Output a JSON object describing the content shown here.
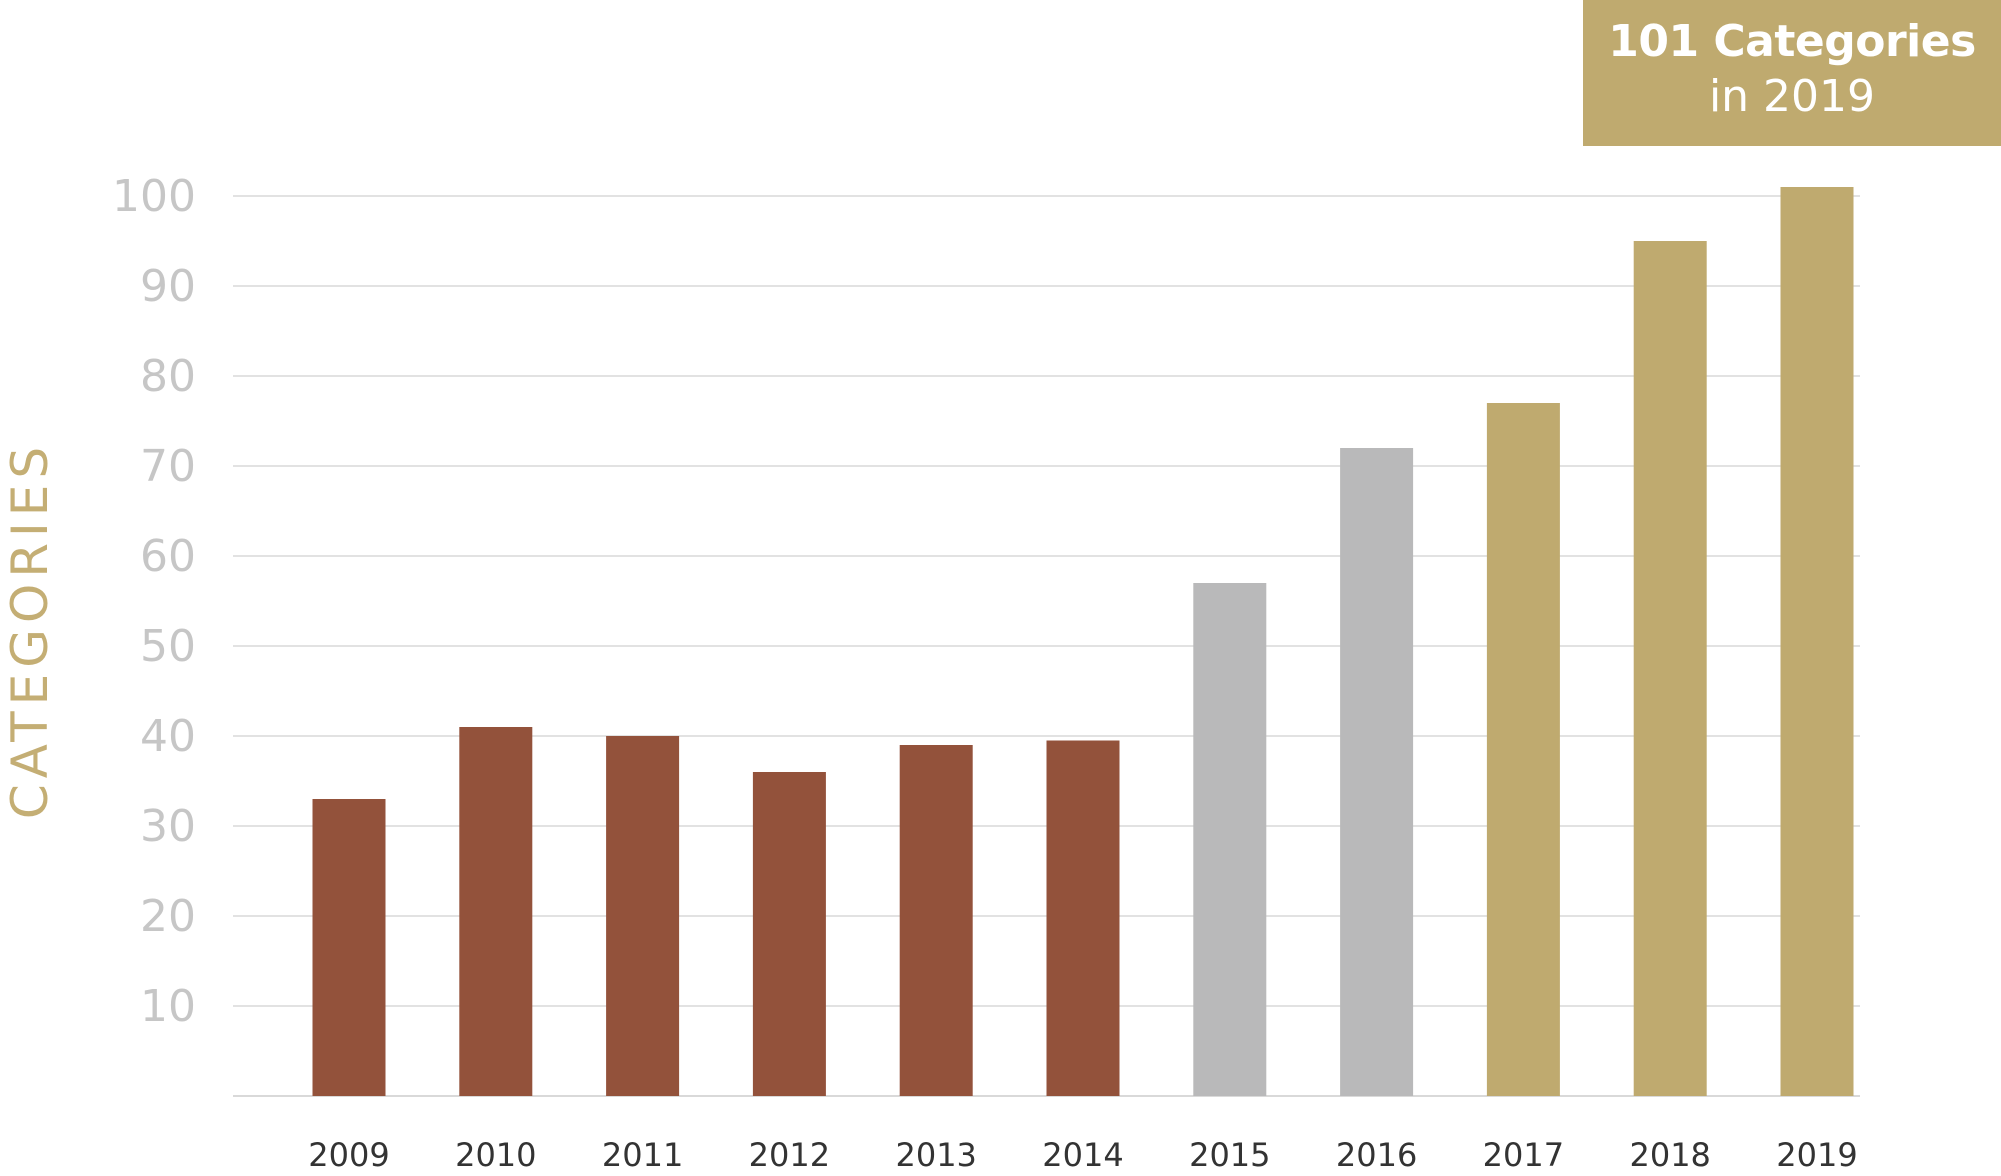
{
  "chart_data": {
    "type": "bar",
    "categories": [
      "2009",
      "2010",
      "2011",
      "2012",
      "2013",
      "2014",
      "2015",
      "2016",
      "2017",
      "2018",
      "2019"
    ],
    "values": [
      33,
      41,
      40,
      36,
      39,
      39.5,
      57,
      72,
      77,
      95,
      101
    ],
    "bar_colors": [
      "#93523b",
      "#93523b",
      "#93523b",
      "#93523b",
      "#93523b",
      "#93523b",
      "#b9b9ba",
      "#b9b9ba",
      "#bfaa6f",
      "#bfaa6f",
      "#bfaa6f"
    ],
    "title": "",
    "xlabel": "",
    "ylabel": "CATEGORIES",
    "ylim": [
      0,
      101
    ],
    "yticks": [
      10,
      20,
      30,
      40,
      50,
      60,
      70,
      80,
      90,
      100
    ],
    "grid": true
  },
  "callout": {
    "headline": "101 Categories",
    "subline": "in 2019",
    "color": "#bfaa6f"
  },
  "colors": {
    "grid": "#d9d9d9",
    "tick_label": "#c6c6c6",
    "axis_title": "#c4ae74"
  }
}
